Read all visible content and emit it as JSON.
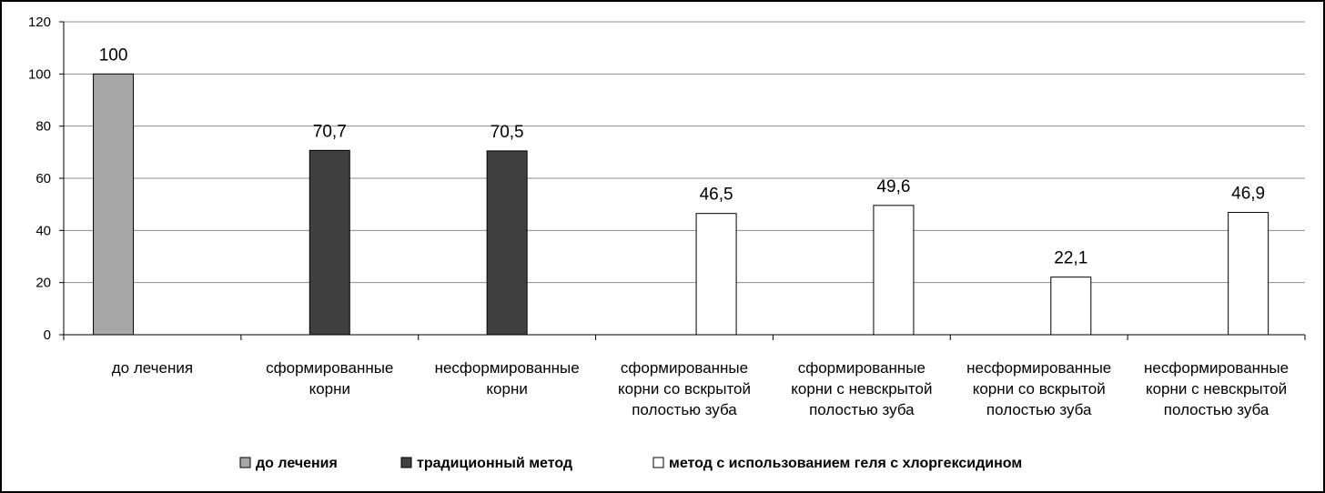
{
  "chart_data": {
    "type": "bar",
    "title": "",
    "xlabel": "",
    "ylabel": "",
    "ylim": [
      0,
      120
    ],
    "yticks": [
      0,
      20,
      40,
      60,
      80,
      100,
      120
    ],
    "grid": true,
    "legend_position": "bottom",
    "categories": [
      "до лечения",
      "сформированные корни",
      "несформированные корни",
      "сформированные корни  со вскрытой полостью зуба",
      "сформированные корни  с невскрытой полостью зуба",
      "несформированные корни со вскрытой полостью зуба",
      "несформированные корни с невскрытой полостью зуба"
    ],
    "category_lines": [
      [
        "до лечения"
      ],
      [
        "сформированные",
        "корни"
      ],
      [
        "несформированные",
        "корни"
      ],
      [
        "сформированные",
        "корни  со вскрытой",
        "полостью зуба"
      ],
      [
        "сформированные",
        "корни  с невскрытой",
        "полостью зуба"
      ],
      [
        "несформированные",
        "корни со вскрытой",
        "полостью зуба"
      ],
      [
        "несформированные",
        "корни с невскрытой",
        "полостью зуба"
      ]
    ],
    "series": [
      {
        "name": "до лечения",
        "color": "#a6a6a6",
        "values": [
          100,
          null,
          null,
          null,
          null,
          null,
          null
        ]
      },
      {
        "name": "традиционный метод",
        "color": "#404040",
        "values": [
          null,
          70.7,
          70.5,
          null,
          null,
          null,
          null
        ]
      },
      {
        "name": "метод с использованием геля с хлоргексидином",
        "color": "#ffffff",
        "values": [
          null,
          null,
          null,
          46.5,
          49.6,
          22.1,
          46.9
        ]
      }
    ],
    "data_labels": [
      "100",
      "70,7",
      "70,5",
      "46,5",
      "49,6",
      "22,1",
      "46,9"
    ]
  }
}
